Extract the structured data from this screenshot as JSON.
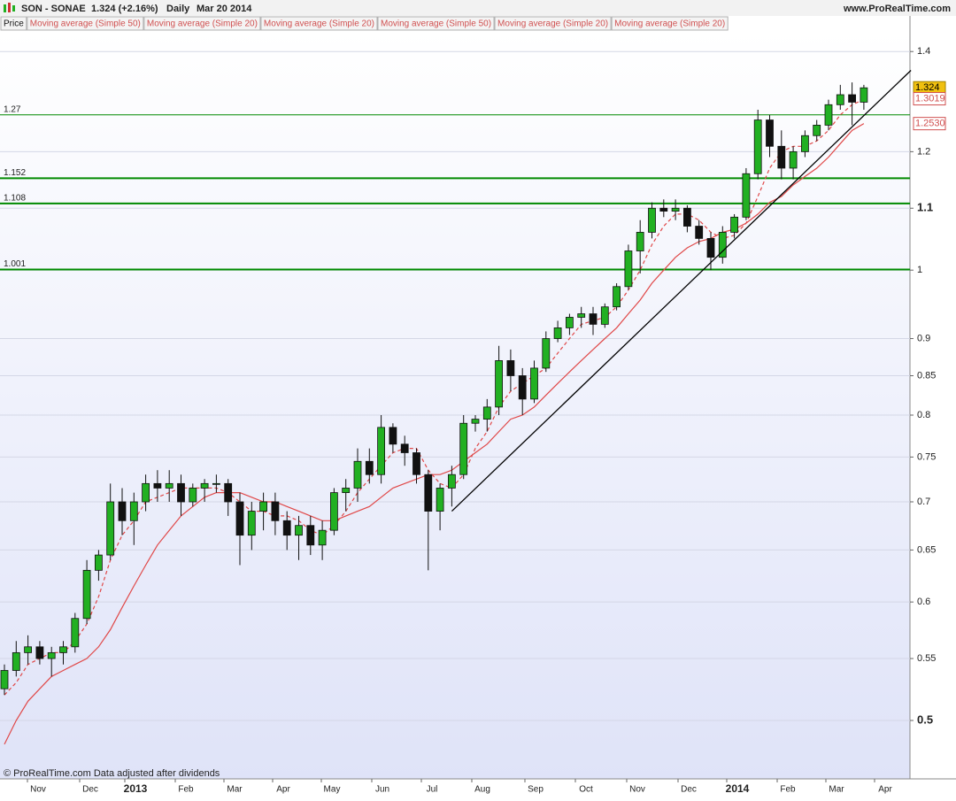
{
  "chart_data": {
    "type": "candlestick",
    "symbol": "SON - SONAE",
    "last": "1.324 (+2.16%)",
    "period": "Daily",
    "date": "Mar 20 2014",
    "site": "www.ProRealTime.com",
    "footer": "© ProRealTime.com  Data adjusted after dividends",
    "legend": [
      "Price",
      "Moving average (Simple 50)",
      "Moving average (Simple 20)",
      "Moving average (Simple 20)",
      "Moving average (Simple 50)",
      "Moving average (Simple 20)",
      "Moving average (Simple 20)"
    ],
    "log_scale": true,
    "grid": true,
    "up_color": "#22b022",
    "down_color": "#111111",
    "ylim": [
      0.457,
      1.445
    ],
    "yticks": [
      0.5,
      0.55,
      0.6,
      0.65,
      0.7,
      0.75,
      0.8,
      0.85,
      0.9,
      1,
      1.1,
      1.2,
      1.4
    ],
    "x_labels": [
      "Nov",
      "Dec",
      "2013",
      "Feb",
      "Mar",
      "Apr",
      "May",
      "Jun",
      "Jul",
      "Aug",
      "Sep",
      "Oct",
      "Nov",
      "Dec",
      "2014",
      "Feb",
      "Mar",
      "Apr"
    ],
    "ohlc": {
      "open": [
        0.525,
        0.54,
        0.555,
        0.56,
        0.55,
        0.555,
        0.56,
        0.585,
        0.63,
        0.645,
        0.7,
        0.68,
        0.7,
        0.72,
        0.715,
        0.72,
        0.7,
        0.715,
        0.72,
        0.72,
        0.7,
        0.665,
        0.69,
        0.7,
        0.68,
        0.665,
        0.675,
        0.655,
        0.67,
        0.71,
        0.715,
        0.745,
        0.73,
        0.785,
        0.765,
        0.755,
        0.73,
        0.69,
        0.715,
        0.73,
        0.79,
        0.795,
        0.81,
        0.87,
        0.85,
        0.82,
        0.86,
        0.9,
        0.915,
        0.93,
        0.935,
        0.92,
        0.945,
        0.975,
        1.03,
        1.06,
        1.1,
        1.095,
        1.1,
        1.07,
        1.05,
        1.02,
        1.06,
        1.085,
        1.16,
        1.26,
        1.21,
        1.17,
        1.2,
        1.23,
        1.25,
        1.29,
        1.31,
        1.295
      ],
      "high": [
        0.545,
        0.565,
        0.57,
        0.565,
        0.56,
        0.565,
        0.59,
        0.64,
        0.65,
        0.72,
        0.715,
        0.71,
        0.73,
        0.735,
        0.735,
        0.73,
        0.72,
        0.725,
        0.73,
        0.725,
        0.71,
        0.7,
        0.71,
        0.71,
        0.69,
        0.685,
        0.685,
        0.68,
        0.715,
        0.725,
        0.76,
        0.76,
        0.8,
        0.79,
        0.775,
        0.76,
        0.735,
        0.72,
        0.74,
        0.8,
        0.8,
        0.82,
        0.89,
        0.885,
        0.86,
        0.87,
        0.91,
        0.925,
        0.935,
        0.945,
        0.945,
        0.95,
        0.98,
        1.04,
        1.08,
        1.11,
        1.115,
        1.115,
        1.105,
        1.08,
        1.06,
        1.07,
        1.09,
        1.17,
        1.28,
        1.27,
        1.24,
        1.21,
        1.24,
        1.26,
        1.3,
        1.33,
        1.335,
        1.33
      ],
      "low": [
        0.52,
        0.535,
        0.545,
        0.545,
        0.535,
        0.545,
        0.555,
        0.58,
        0.62,
        0.64,
        0.665,
        0.655,
        0.69,
        0.7,
        0.7,
        0.685,
        0.695,
        0.7,
        0.71,
        0.685,
        0.635,
        0.65,
        0.67,
        0.665,
        0.65,
        0.64,
        0.645,
        0.64,
        0.665,
        0.69,
        0.7,
        0.72,
        0.72,
        0.755,
        0.74,
        0.72,
        0.63,
        0.67,
        0.695,
        0.725,
        0.78,
        0.78,
        0.8,
        0.83,
        0.8,
        0.815,
        0.855,
        0.895,
        0.905,
        0.915,
        0.905,
        0.915,
        0.94,
        0.97,
        0.995,
        1.05,
        1.085,
        1.08,
        1.06,
        1.04,
        1.0,
        1.01,
        1.05,
        1.08,
        1.15,
        1.19,
        1.15,
        1.15,
        1.19,
        1.22,
        1.24,
        1.28,
        1.25,
        1.28
      ],
      "close": [
        0.54,
        0.555,
        0.56,
        0.55,
        0.555,
        0.56,
        0.585,
        0.63,
        0.645,
        0.7,
        0.68,
        0.7,
        0.72,
        0.715,
        0.72,
        0.7,
        0.715,
        0.72,
        0.72,
        0.7,
        0.665,
        0.69,
        0.7,
        0.68,
        0.665,
        0.675,
        0.655,
        0.67,
        0.71,
        0.715,
        0.745,
        0.73,
        0.785,
        0.765,
        0.755,
        0.73,
        0.69,
        0.715,
        0.73,
        0.79,
        0.795,
        0.81,
        0.87,
        0.85,
        0.82,
        0.86,
        0.9,
        0.915,
        0.93,
        0.935,
        0.92,
        0.945,
        0.975,
        1.03,
        1.06,
        1.1,
        1.095,
        1.1,
        1.07,
        1.05,
        1.02,
        1.06,
        1.085,
        1.16,
        1.26,
        1.21,
        1.17,
        1.2,
        1.23,
        1.25,
        1.29,
        1.31,
        1.295,
        1.324
      ]
    },
    "moving_averages": [
      {
        "color": "#e04848",
        "dashed": true,
        "values": [
          0.52,
          0.53,
          0.545,
          0.55,
          0.555,
          0.555,
          0.565,
          0.58,
          0.605,
          0.64,
          0.665,
          0.68,
          0.7,
          0.705,
          0.71,
          0.715,
          0.715,
          0.715,
          0.715,
          0.71,
          0.7,
          0.69,
          0.69,
          0.685,
          0.685,
          0.68,
          0.67,
          0.665,
          0.675,
          0.69,
          0.71,
          0.725,
          0.74,
          0.755,
          0.76,
          0.76,
          0.735,
          0.72,
          0.715,
          0.73,
          0.76,
          0.78,
          0.81,
          0.83,
          0.84,
          0.85,
          0.86,
          0.88,
          0.9,
          0.92,
          0.925,
          0.93,
          0.945,
          0.97,
          1.0,
          1.04,
          1.07,
          1.09,
          1.09,
          1.08,
          1.06,
          1.05,
          1.055,
          1.075,
          1.12,
          1.17,
          1.2,
          1.21,
          1.21,
          1.22,
          1.24,
          1.27,
          1.29,
          1.3
        ]
      },
      {
        "color": "#e04848",
        "dashed": false,
        "values": [
          0.482,
          0.5,
          0.515,
          0.525,
          0.535,
          0.54,
          0.545,
          0.55,
          0.56,
          0.575,
          0.595,
          0.615,
          0.635,
          0.655,
          0.67,
          0.685,
          0.695,
          0.705,
          0.71,
          0.71,
          0.71,
          0.705,
          0.7,
          0.7,
          0.695,
          0.69,
          0.685,
          0.68,
          0.68,
          0.685,
          0.69,
          0.695,
          0.705,
          0.715,
          0.72,
          0.725,
          0.73,
          0.73,
          0.735,
          0.745,
          0.755,
          0.765,
          0.78,
          0.795,
          0.8,
          0.81,
          0.825,
          0.84,
          0.855,
          0.87,
          0.885,
          0.9,
          0.915,
          0.935,
          0.955,
          0.98,
          1.0,
          1.02,
          1.035,
          1.045,
          1.05,
          1.06,
          1.065,
          1.075,
          1.09,
          1.11,
          1.12,
          1.14,
          1.155,
          1.17,
          1.19,
          1.215,
          1.24,
          1.253
        ]
      }
    ],
    "levels": [
      {
        "value": 1.27,
        "label": "1.27"
      },
      {
        "value": 1.152,
        "label": "1.152"
      },
      {
        "value": 1.108,
        "label": "1.108"
      },
      {
        "value": 1.001,
        "label": "1.001"
      }
    ],
    "level_color": "#008a00",
    "trendline": {
      "x": [
        38,
        77
      ],
      "y": [
        0.69,
        1.36
      ],
      "color": "#000000"
    },
    "price_tags": [
      {
        "value": 1.324,
        "label": "1.324",
        "color": "#f0c010"
      },
      {
        "value": 1.3019,
        "label": "1.3019",
        "color": "#ffffff"
      },
      {
        "value": 1.253,
        "label": "1.2530",
        "color": "#ffffff"
      }
    ]
  }
}
